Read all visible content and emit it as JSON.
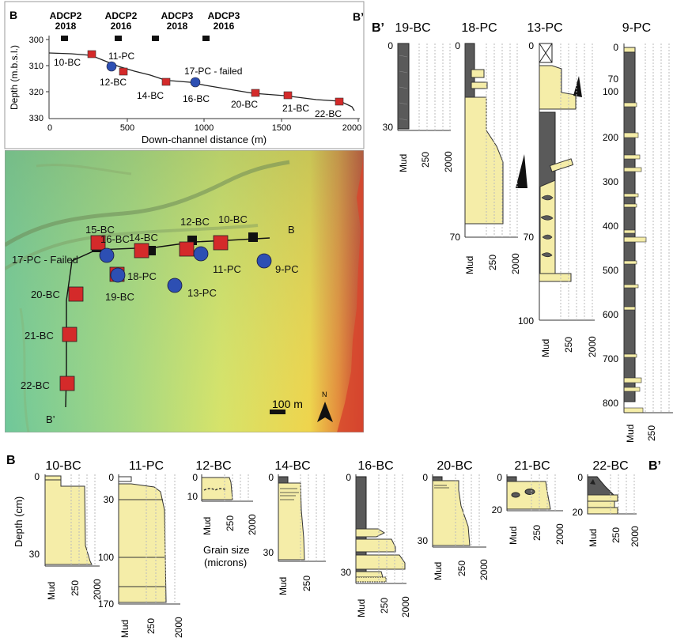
{
  "profile": {
    "label_left": "B",
    "label_right": "B’",
    "ylabel": "Depth (m.b.s.l.)",
    "xlabel": "Down-channel distance (m)",
    "yticks": [
      "300",
      "310",
      "320",
      "330"
    ],
    "xticks": [
      "0",
      "500",
      "1000",
      "1500",
      "2000"
    ],
    "adcp": [
      {
        "name": "ADCP2",
        "year": "2018"
      },
      {
        "name": "ADCP2",
        "year": "2016"
      },
      {
        "name": "ADCP3",
        "year": "2018"
      },
      {
        "name": "ADCP3",
        "year": "2016"
      }
    ],
    "samples": [
      "10-BC",
      "11-PC",
      "12-BC",
      "14-BC",
      "17-PC - failed",
      "16-BC",
      "20-BC",
      "21-BC",
      "22-BC"
    ]
  },
  "map": {
    "labels": [
      "15-BC",
      "16-BC",
      "14-BC",
      "12-BC",
      "10-BC",
      "B",
      "17-PC - Failed",
      "11-PC",
      "9-PC",
      "18-PC",
      "19-BC",
      "13-PC",
      "20-BC",
      "21-BC",
      "22-BC",
      "B’"
    ],
    "scale": "100 m",
    "north": "N"
  },
  "right_cores": {
    "label": "B’",
    "names": [
      "19-BC",
      "18-PC",
      "13-PC",
      "9-PC"
    ],
    "depth_ticks": {
      "c19": [
        "0",
        "30"
      ],
      "c18": [
        "0",
        "70"
      ],
      "c13": [
        "0",
        "70",
        "100"
      ],
      "c9": [
        "0",
        "70",
        "100",
        "200",
        "300",
        "400",
        "500",
        "600",
        "700",
        "800"
      ]
    }
  },
  "bottom_cores": {
    "label_left": "B",
    "label_right": "B’",
    "ylabel": "Depth (cm)",
    "names": [
      "10-BC",
      "11-PC",
      "12-BC",
      "14-BC",
      "16-BC",
      "20-BC",
      "21-BC",
      "22-BC"
    ],
    "depth_ticks": {
      "c10": [
        "0",
        "30"
      ],
      "c11": [
        "0",
        "30",
        "100",
        "170"
      ],
      "c12": [
        "0",
        "10"
      ],
      "c14": [
        "0",
        "30"
      ],
      "c16": [
        "0",
        "30"
      ],
      "c20": [
        "0",
        "30"
      ],
      "c21": [
        "0",
        "20"
      ],
      "c22": [
        "0",
        "20"
      ]
    },
    "grain_note": [
      "Grain size",
      "(microns)"
    ]
  },
  "axis": {
    "mud": "Mud",
    "g250": "250",
    "g2000": "2000"
  },
  "colors": {
    "mud": "#5a5a5a",
    "sand": "#f5eda8",
    "square": "#d42a2a",
    "circle": "#2d4fb3"
  }
}
